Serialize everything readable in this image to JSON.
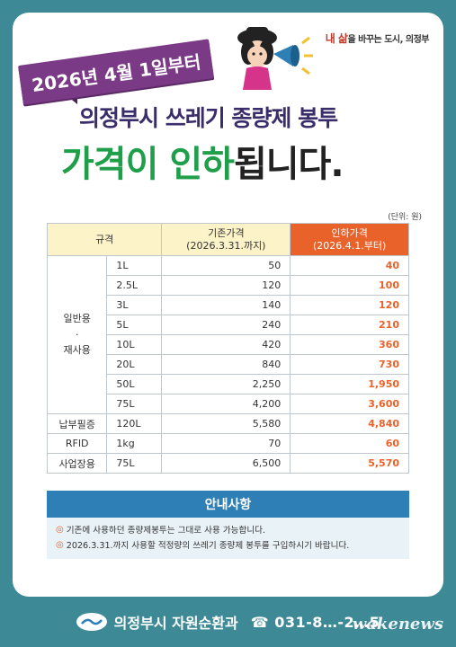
{
  "slogan": {
    "accent": "내 삶",
    "text": "을 바꾸는 도시, 의정부"
  },
  "ribbon": "2026년 4월 1일부터",
  "title": {
    "line1": "의정부시 쓰레기 종량제 봉투",
    "green": "가격이 인하",
    "rest": "됩니다."
  },
  "unit_note": "(단위: 원)",
  "table": {
    "headers": {
      "spec": "규격",
      "old": "기존가격",
      "old_date": "(2026.3.31.까지)",
      "new": "인하가격",
      "new_date": "(2026.4.1.부터)"
    },
    "category_general": {
      "line1": "일반용",
      "dot": "·",
      "line2": "재사용"
    },
    "rows": [
      {
        "size": "1L",
        "old": "50",
        "new": "40"
      },
      {
        "size": "2.5L",
        "old": "120",
        "new": "100"
      },
      {
        "size": "3L",
        "old": "140",
        "new": "120"
      },
      {
        "size": "5L",
        "old": "240",
        "new": "210"
      },
      {
        "size": "10L",
        "old": "420",
        "new": "360"
      },
      {
        "size": "20L",
        "old": "840",
        "new": "730"
      },
      {
        "size": "50L",
        "old": "2,250",
        "new": "1,950"
      },
      {
        "size": "75L",
        "old": "4,200",
        "new": "3,600"
      }
    ],
    "special_rows": [
      {
        "category": "납부필증",
        "size": "120L",
        "old": "5,580",
        "new": "4,840"
      },
      {
        "category": "RFID",
        "size": "1kg",
        "old": "70",
        "new": "60"
      },
      {
        "category": "사업장용",
        "size": "75L",
        "old": "6,500",
        "new": "5,570"
      }
    ]
  },
  "info": {
    "title": "안내사항",
    "lines": [
      "기존에 사용하던 종량제봉투는 그대로 사용 가능합니다.",
      "2026.3.31.까지 사용할 적정량의 쓰레기 종량제 봉투를 구입하시기 바랍니다."
    ]
  },
  "footer": {
    "dept": "의정부시 자원순환과",
    "phone": "☎ 031-8…-2…5"
  },
  "watermark": "wakenews",
  "colors": {
    "teal": "#3d8a96",
    "purple": "#7b3a86",
    "green": "#1f9f4a",
    "orange": "#e8622a",
    "blue": "#2f7fb7"
  }
}
